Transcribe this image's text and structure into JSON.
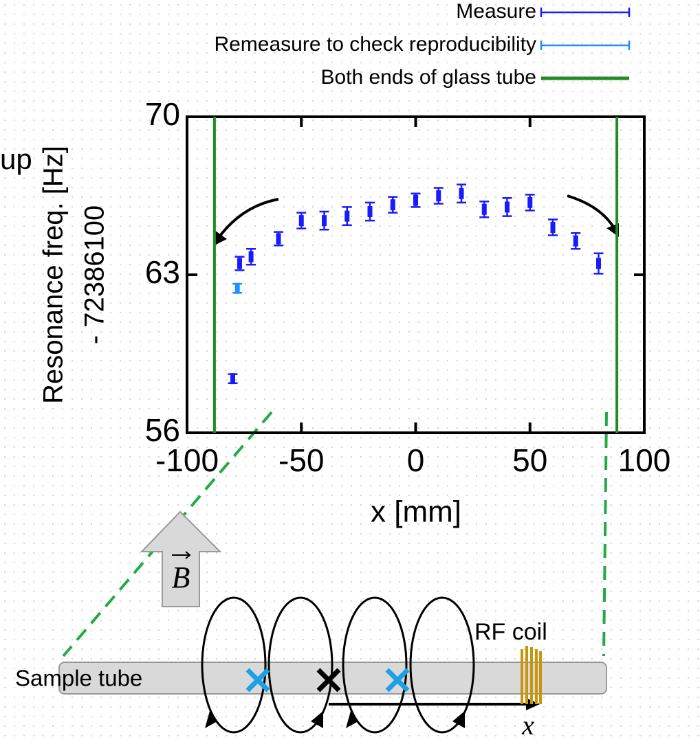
{
  "chart_data": {
    "type": "errorbar",
    "ylabel": [
      "Resonance freq. [Hz]",
      "- 72386100"
    ],
    "xlabel": "x [mm]",
    "xlim": [
      -100,
      100
    ],
    "xticks": [
      -100,
      -50,
      0,
      50,
      100
    ],
    "ylim": [
      56,
      70
    ],
    "yticks": [
      56,
      63,
      70
    ],
    "grid": false,
    "legend": "top-right",
    "series": [
      {
        "name": "Measure",
        "color": "#1a1aff",
        "style": "errorbars",
        "x": [
          -80,
          -77,
          -72,
          -60,
          -50,
          -40,
          -30,
          -20,
          -10,
          0,
          10,
          20,
          30,
          40,
          50,
          60,
          70,
          80
        ],
        "values": [
          58.4,
          63.5,
          63.8,
          64.6,
          65.4,
          65.4,
          65.6,
          65.8,
          66.1,
          66.3,
          66.5,
          66.6,
          65.9,
          66.0,
          66.2,
          65.1,
          64.5,
          63.5
        ],
        "errors": [
          0.2,
          0.3,
          0.35,
          0.3,
          0.35,
          0.4,
          0.4,
          0.4,
          0.35,
          0.3,
          0.35,
          0.4,
          0.35,
          0.4,
          0.35,
          0.35,
          0.35,
          0.45
        ]
      },
      {
        "name": "Remeasure to check reproducibility",
        "color": "#1e90ff",
        "style": "errorbars",
        "x": [
          -78
        ],
        "values": [
          62.4
        ],
        "errors": [
          0.2
        ]
      },
      {
        "name": "Both ends of glass tube",
        "color": "#228b22",
        "style": "vline",
        "x": [
          -88,
          88
        ]
      }
    ]
  },
  "diagram": {
    "cropped_label": "up",
    "field": "B",
    "tube": "Sample tube",
    "coil": "RF coil",
    "axis": "x"
  }
}
